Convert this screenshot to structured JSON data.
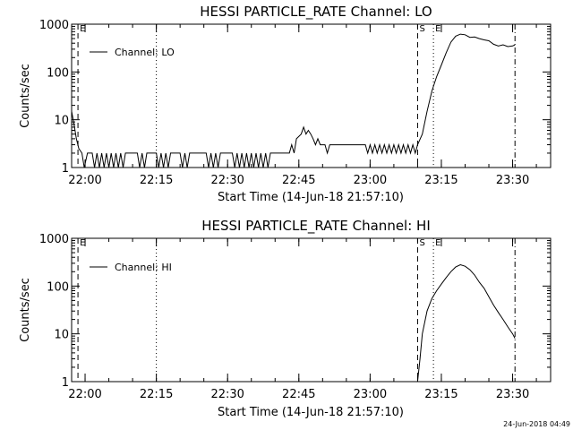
{
  "footer": {
    "timestamp": "24-Jun-2018 04:49"
  },
  "chart_data": [
    {
      "type": "line",
      "title": "HESSI PARTICLE_RATE Channel: LO",
      "xlabel": "Start Time (14-Jun-18 21:57:10)",
      "ylabel": "Counts/sec",
      "yscale": "log",
      "ylim": [
        1,
        1000
      ],
      "xlim": [
        "21:57:10",
        "23:38:00"
      ],
      "xticks": [
        "22:00",
        "22:15",
        "22:30",
        "22:45",
        "23:00",
        "23:15",
        "23:30"
      ],
      "yticks": [
        "1",
        "10",
        "100",
        "1000"
      ],
      "legend": {
        "label": "Channel: LO",
        "position": "upper-left"
      },
      "markers": [
        {
          "time": "21:58:30",
          "style": "dashed",
          "label": "E"
        },
        {
          "time": "22:15:00",
          "style": "dotted",
          "label": ""
        },
        {
          "time": "23:10:00",
          "style": "dashed",
          "label": "S"
        },
        {
          "time": "23:13:20",
          "style": "dotted",
          "label": "E"
        },
        {
          "time": "23:30:30",
          "style": "dash-dot",
          "label": ""
        }
      ],
      "series": [
        {
          "name": "Channel: LO",
          "points": [
            [
              "21:57:10",
              15
            ],
            [
              "21:57:40",
              8
            ],
            [
              "21:58:10",
              4
            ],
            [
              "21:58:40",
              2.5
            ],
            [
              "21:59:20",
              2
            ],
            [
              "21:59:50",
              1
            ],
            [
              "22:00:30",
              2
            ],
            [
              "22:01:30",
              2
            ],
            [
              "22:02:00",
              1
            ],
            [
              "22:02:30",
              2
            ],
            [
              "22:03:00",
              1
            ],
            [
              "22:03:30",
              2
            ],
            [
              "22:04:00",
              1
            ],
            [
              "22:04:30",
              2
            ],
            [
              "22:05:00",
              1
            ],
            [
              "22:05:30",
              2
            ],
            [
              "22:06:00",
              1
            ],
            [
              "22:06:30",
              2
            ],
            [
              "22:07:00",
              1
            ],
            [
              "22:07:30",
              2
            ],
            [
              "22:08:00",
              1
            ],
            [
              "22:08:30",
              2
            ],
            [
              "22:11:00",
              2
            ],
            [
              "22:11:30",
              1
            ],
            [
              "22:12:00",
              2
            ],
            [
              "22:12:30",
              1
            ],
            [
              "22:13:00",
              2
            ],
            [
              "22:15:00",
              2
            ],
            [
              "22:15:30",
              1
            ],
            [
              "22:16:00",
              2
            ],
            [
              "22:16:30",
              1
            ],
            [
              "22:17:00",
              2
            ],
            [
              "22:17:30",
              1
            ],
            [
              "22:18:00",
              2
            ],
            [
              "22:20:00",
              2
            ],
            [
              "22:20:30",
              1
            ],
            [
              "22:21:00",
              2
            ],
            [
              "22:21:30",
              1
            ],
            [
              "22:22:00",
              2
            ],
            [
              "22:25:30",
              2
            ],
            [
              "22:26:00",
              1
            ],
            [
              "22:26:30",
              2
            ],
            [
              "22:27:00",
              1
            ],
            [
              "22:27:30",
              2
            ],
            [
              "22:28:00",
              1
            ],
            [
              "22:28:30",
              2
            ],
            [
              "22:31:00",
              2
            ],
            [
              "22:31:30",
              1
            ],
            [
              "22:32:00",
              2
            ],
            [
              "22:32:30",
              1
            ],
            [
              "22:33:00",
              2
            ],
            [
              "22:33:30",
              1
            ],
            [
              "22:34:00",
              2
            ],
            [
              "22:34:30",
              1
            ],
            [
              "22:35:00",
              2
            ],
            [
              "22:35:30",
              1
            ],
            [
              "22:36:00",
              2
            ],
            [
              "22:36:30",
              1
            ],
            [
              "22:37:00",
              2
            ],
            [
              "22:37:30",
              1
            ],
            [
              "22:38:00",
              2
            ],
            [
              "22:38:30",
              1
            ],
            [
              "22:39:00",
              2
            ],
            [
              "22:43:00",
              2
            ],
            [
              "22:43:30",
              3
            ],
            [
              "22:44:00",
              2
            ],
            [
              "22:44:30",
              4
            ],
            [
              "22:45:30",
              5
            ],
            [
              "22:46:00",
              7
            ],
            [
              "22:46:30",
              5
            ],
            [
              "22:47:00",
              6
            ],
            [
              "22:47:30",
              5
            ],
            [
              "22:48:00",
              4
            ],
            [
              "22:48:30",
              3
            ],
            [
              "22:49:00",
              4
            ],
            [
              "22:49:30",
              3
            ],
            [
              "22:50:30",
              3
            ],
            [
              "22:51:00",
              2
            ],
            [
              "22:51:30",
              3
            ],
            [
              "22:59:00",
              3
            ],
            [
              "22:59:30",
              2
            ],
            [
              "23:00:00",
              3
            ],
            [
              "23:00:30",
              2
            ],
            [
              "23:01:00",
              3
            ],
            [
              "23:01:30",
              2
            ],
            [
              "23:02:00",
              3
            ],
            [
              "23:02:30",
              2
            ],
            [
              "23:03:00",
              3
            ],
            [
              "23:03:30",
              2
            ],
            [
              "23:04:00",
              3
            ],
            [
              "23:04:30",
              2
            ],
            [
              "23:05:00",
              3
            ],
            [
              "23:05:30",
              2
            ],
            [
              "23:06:00",
              3
            ],
            [
              "23:06:30",
              2
            ],
            [
              "23:07:00",
              3
            ],
            [
              "23:07:30",
              2
            ],
            [
              "23:08:00",
              3
            ],
            [
              "23:08:30",
              2
            ],
            [
              "23:09:00",
              3
            ],
            [
              "23:09:30",
              2
            ],
            [
              "23:10:00",
              3
            ],
            [
              "23:11:00",
              5
            ],
            [
              "23:12:00",
              15
            ],
            [
              "23:13:00",
              40
            ],
            [
              "23:14:00",
              80
            ],
            [
              "23:15:00",
              140
            ],
            [
              "23:16:00",
              250
            ],
            [
              "23:17:00",
              420
            ],
            [
              "23:18:00",
              560
            ],
            [
              "23:19:00",
              620
            ],
            [
              "23:20:00",
              600
            ],
            [
              "23:21:00",
              530
            ],
            [
              "23:22:00",
              540
            ],
            [
              "23:23:00",
              500
            ],
            [
              "23:24:00",
              470
            ],
            [
              "23:25:00",
              450
            ],
            [
              "23:26:00",
              380
            ],
            [
              "23:27:00",
              350
            ],
            [
              "23:28:00",
              370
            ],
            [
              "23:29:00",
              340
            ],
            [
              "23:30:00",
              350
            ],
            [
              "23:30:30",
              370
            ]
          ]
        }
      ]
    },
    {
      "type": "line",
      "title": "HESSI PARTICLE_RATE Channel: HI",
      "xlabel": "Start Time (14-Jun-18 21:57:10)",
      "ylabel": "Counts/sec",
      "yscale": "log",
      "ylim": [
        1,
        1000
      ],
      "xlim": [
        "21:57:10",
        "23:38:00"
      ],
      "xticks": [
        "22:00",
        "22:15",
        "22:30",
        "22:45",
        "23:00",
        "23:15",
        "23:30"
      ],
      "yticks": [
        "1",
        "10",
        "100",
        "1000"
      ],
      "legend": {
        "label": "Channel: HI",
        "position": "upper-left"
      },
      "markers": [
        {
          "time": "21:58:30",
          "style": "dashed",
          "label": "E"
        },
        {
          "time": "22:15:00",
          "style": "dotted",
          "label": ""
        },
        {
          "time": "23:10:00",
          "style": "dashed",
          "label": "S"
        },
        {
          "time": "23:13:20",
          "style": "dotted",
          "label": "E"
        },
        {
          "time": "23:30:30",
          "style": "dash-dot",
          "label": ""
        }
      ],
      "series": [
        {
          "name": "Channel: HI",
          "points": [
            [
              "23:10:00",
              1
            ],
            [
              "23:10:30",
              3
            ],
            [
              "23:11:00",
              10
            ],
            [
              "23:12:00",
              30
            ],
            [
              "23:13:00",
              55
            ],
            [
              "23:14:00",
              80
            ],
            [
              "23:15:00",
              110
            ],
            [
              "23:16:00",
              150
            ],
            [
              "23:17:00",
              200
            ],
            [
              "23:18:00",
              250
            ],
            [
              "23:19:00",
              280
            ],
            [
              "23:20:00",
              260
            ],
            [
              "23:21:00",
              220
            ],
            [
              "23:22:00",
              170
            ],
            [
              "23:23:00",
              120
            ],
            [
              "23:24:00",
              90
            ],
            [
              "23:25:00",
              60
            ],
            [
              "23:26:00",
              40
            ],
            [
              "23:27:00",
              28
            ],
            [
              "23:28:00",
              20
            ],
            [
              "23:29:00",
              14
            ],
            [
              "23:30:00",
              10
            ],
            [
              "23:30:30",
              8
            ]
          ]
        }
      ]
    }
  ]
}
